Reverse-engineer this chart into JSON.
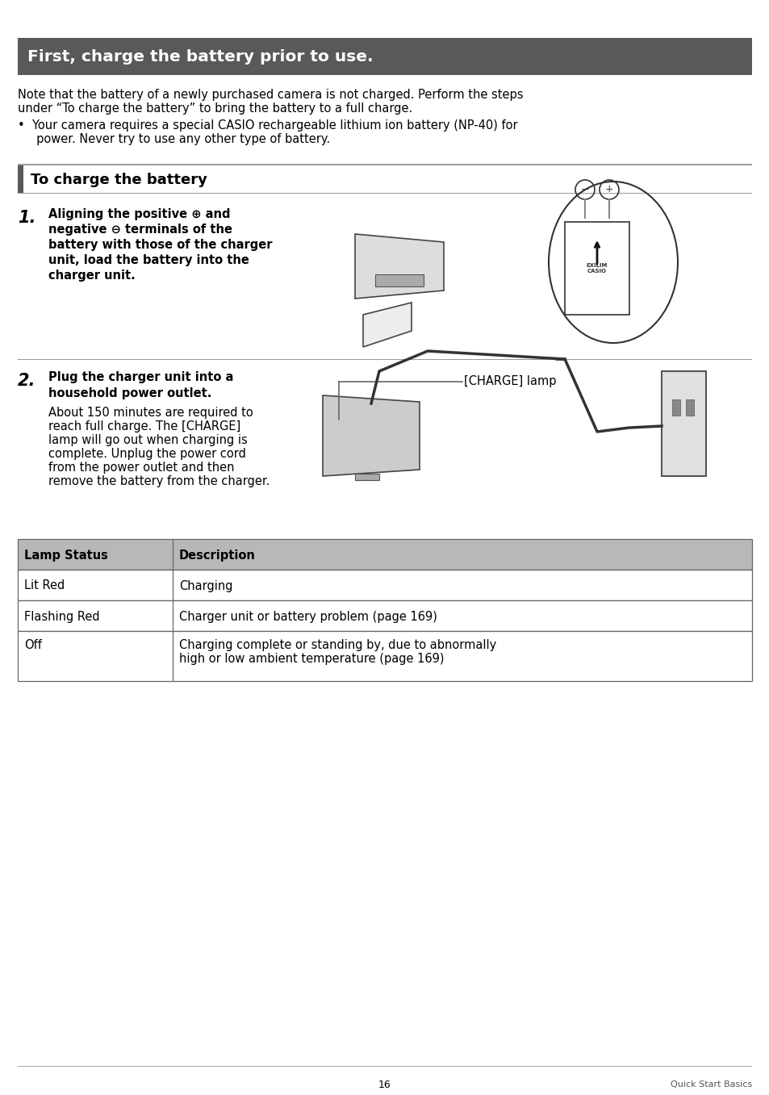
{
  "page_bg": "#ffffff",
  "header_bg": "#595959",
  "header_text": "First, charge the battery prior to use.",
  "header_text_color": "#ffffff",
  "header_fontsize": 14.5,
  "section_header_text": "To charge the battery",
  "section_header_bar_color": "#595959",
  "section_header_fontsize": 13,
  "body_fontsize": 10.5,
  "para1_line1": "Note that the battery of a newly purchased camera is not charged. Perform the steps",
  "para1_line2": "under “To charge the battery” to bring the battery to a full charge.",
  "para1_bullet": "•  Your camera requires a special CASIO rechargeable lithium ion battery (NP-40) for",
  "para1_bullet2": "     power. Never try to use any other type of battery.",
  "step1_num": "1.",
  "step1_bold_lines": [
    "Aligning the positive ⊕ and",
    "negative ⊖ terminals of the",
    "battery with those of the charger",
    "unit, load the battery into the",
    "charger unit."
  ],
  "step2_num": "2.",
  "step2_bold_lines": [
    "Plug the charger unit into a",
    "household power outlet."
  ],
  "step2_body_lines": [
    "About 150 minutes are required to",
    "reach full charge. The [CHARGE]",
    "lamp will go out when charging is",
    "complete. Unplug the power cord",
    "from the power outlet and then",
    "remove the battery from the charger."
  ],
  "charge_lamp_label": "[CHARGE] lamp",
  "table_header_bg": "#b8b8b8",
  "table_border_color": "#666666",
  "table_col1_header": "Lamp Status",
  "table_col2_header": "Description",
  "table_rows": [
    [
      "Lit Red",
      "Charging"
    ],
    [
      "Flashing Red",
      "Charger unit or battery problem (page 169)"
    ],
    [
      "Off",
      "Charging complete or standing by, due to abnormally\nhigh or low ambient temperature (page 169)"
    ]
  ],
  "footer_page": "16",
  "footer_right": "Quick Start Basics",
  "footer_fontsize": 9
}
